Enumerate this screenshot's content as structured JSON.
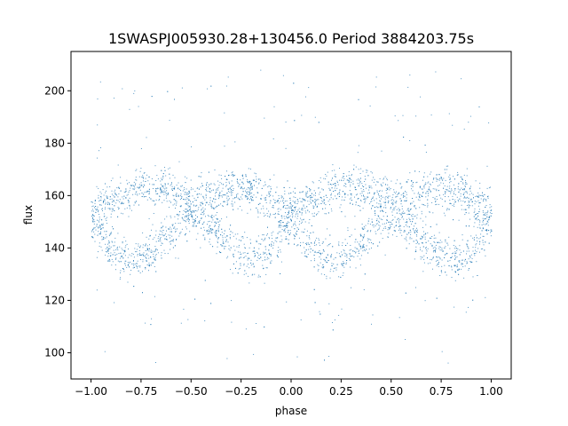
{
  "chart_data": {
    "type": "scatter",
    "title": "1SWASPJ005930.28+130456.0 Period 3884203.75s",
    "xlabel": "phase",
    "ylabel": "flux",
    "xlim": [
      -1.1,
      1.1
    ],
    "ylim": [
      90,
      215
    ],
    "x_ticks": [
      -1.0,
      -0.75,
      -0.5,
      -0.25,
      0.0,
      0.25,
      0.5,
      0.75,
      1.0
    ],
    "x_tick_labels": [
      "−1.00",
      "−0.75",
      "−0.50",
      "−0.25",
      "0.00",
      "0.25",
      "0.50",
      "0.75",
      "1.00"
    ],
    "y_ticks": [
      100,
      120,
      140,
      160,
      180,
      200
    ],
    "y_tick_labels": [
      "100",
      "120",
      "140",
      "160",
      "180",
      "200"
    ],
    "grid": false,
    "marker_color": "#1f77b4",
    "series": [
      {
        "name": "",
        "profile": {
          "description_x": "phase, one cycle",
          "phase": [
            0.0,
            0.05,
            0.1,
            0.15,
            0.2,
            0.25,
            0.3,
            0.35,
            0.4,
            0.45,
            0.5,
            0.55,
            0.6,
            0.65,
            0.7,
            0.75,
            0.8,
            0.85,
            0.9,
            0.95,
            1.0
          ],
          "upper_flux": [
            155,
            157,
            158,
            160,
            162,
            163,
            164,
            163,
            162,
            160,
            158,
            159,
            160,
            161,
            162,
            163,
            162,
            160,
            158,
            156,
            155
          ],
          "lower_flux": [
            150,
            146,
            141,
            137,
            135,
            136,
            139,
            142,
            146,
            150,
            153,
            150,
            147,
            144,
            141,
            138,
            136,
            137,
            140,
            145,
            150
          ]
        },
        "flux_range": [
          96,
          209
        ]
      }
    ]
  }
}
